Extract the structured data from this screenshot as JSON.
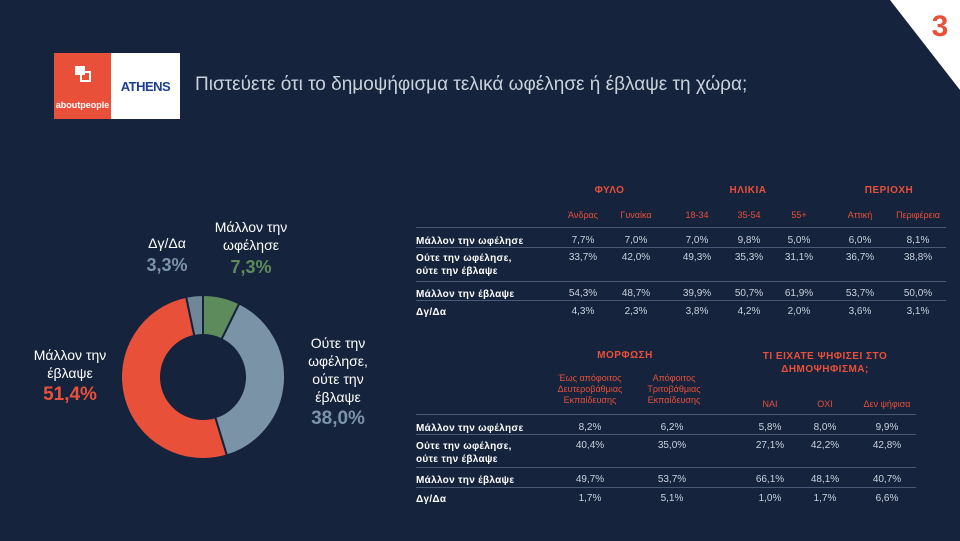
{
  "page_number": "3",
  "logos": {
    "aboutpeople": "aboutpeople",
    "athens": "ATHENS"
  },
  "title": "Πιστεύετε ότι το δημοψήφισμα τελικά ωφέλησε ή έβλαψε τη χώρα;",
  "colors": {
    "background": "#15233c",
    "accent": "#e8503a",
    "green": "#5e8b5b",
    "blue_grey": "#7a93a6",
    "muted": "#c9d1dc"
  },
  "chart_data": [
    {
      "type": "pie",
      "categories": [
        "Μάλλον την έβλαψε",
        "Ούτε την ωφέλησε, ούτε την έβλαψε",
        "Μάλλον την ωφέλησε",
        "Δγ/Δα"
      ],
      "values": [
        51.4,
        38.0,
        7.3,
        3.3
      ],
      "value_labels": [
        "51,4%",
        "38,0%",
        "7,3%",
        "3,3%"
      ],
      "colors": [
        "#e8503a",
        "#7a93a6",
        "#5e8b5b",
        "#6f8799"
      ]
    },
    {
      "type": "table",
      "groups": [
        "ΦΥΛΟ",
        "ΗΛΙΚΙΑ",
        "ΠΕΡΙΟΧΗ"
      ],
      "columns": [
        "Άνδρας",
        "Γυναίκα",
        "18-34",
        "35-54",
        "55+",
        "Αττική",
        "Περιφέρεια"
      ],
      "rows": [
        {
          "label": "Μάλλον την ωφέλησε",
          "values": [
            "7,7%",
            "7,0%",
            "7,0%",
            "9,8%",
            "5,0%",
            "6,0%",
            "8,1%"
          ]
        },
        {
          "label": "Ούτε την ωφέλησε, ούτε την έβλαψε",
          "values": [
            "33,7%",
            "42,0%",
            "49,3%",
            "35,3%",
            "31,1%",
            "36,7%",
            "38,8%"
          ]
        },
        {
          "label": "Μάλλον την έβλαψε",
          "values": [
            "54,3%",
            "48,7%",
            "39,9%",
            "50,7%",
            "61,9%",
            "53,7%",
            "50,0%"
          ]
        },
        {
          "label": "Δγ/Δα",
          "values": [
            "4,3%",
            "2,3%",
            "3,8%",
            "4,2%",
            "2,0%",
            "3,6%",
            "3,1%"
          ]
        }
      ]
    },
    {
      "type": "table",
      "groups": [
        "ΜΟΡΦΩΣΗ",
        "ΤΙ ΕΙΧΑΤΕ ΨΗΦΙΣΕΙ ΣΤΟ ΔΗΜΟΨΗΦΙΣΜΑ;"
      ],
      "columns": [
        "Έως απόφοιτος Δευτεροβάθμιας Εκπαίδευσης",
        "Απόφοιτος Τριτοβάθμιας Εκπαίδευσης",
        "ΝΑΙ",
        "ΟΧΙ",
        "Δεν ψήφισα"
      ],
      "rows": [
        {
          "label": "Μάλλον την ωφέλησε",
          "values": [
            "8,2%",
            "6,2%",
            "5,8%",
            "8,0%",
            "9,9%"
          ]
        },
        {
          "label": "Ούτε την ωφέλησε, ούτε την έβλαψε",
          "values": [
            "40,4%",
            "35,0%",
            "27,1%",
            "42,2%",
            "42,8%"
          ]
        },
        {
          "label": "Μάλλον την έβλαψε",
          "values": [
            "49,7%",
            "53,7%",
            "66,1%",
            "48,1%",
            "40,7%"
          ]
        },
        {
          "label": "Δγ/Δα",
          "values": [
            "1,7%",
            "5,1%",
            "1,0%",
            "1,7%",
            "6,6%"
          ]
        }
      ]
    }
  ]
}
